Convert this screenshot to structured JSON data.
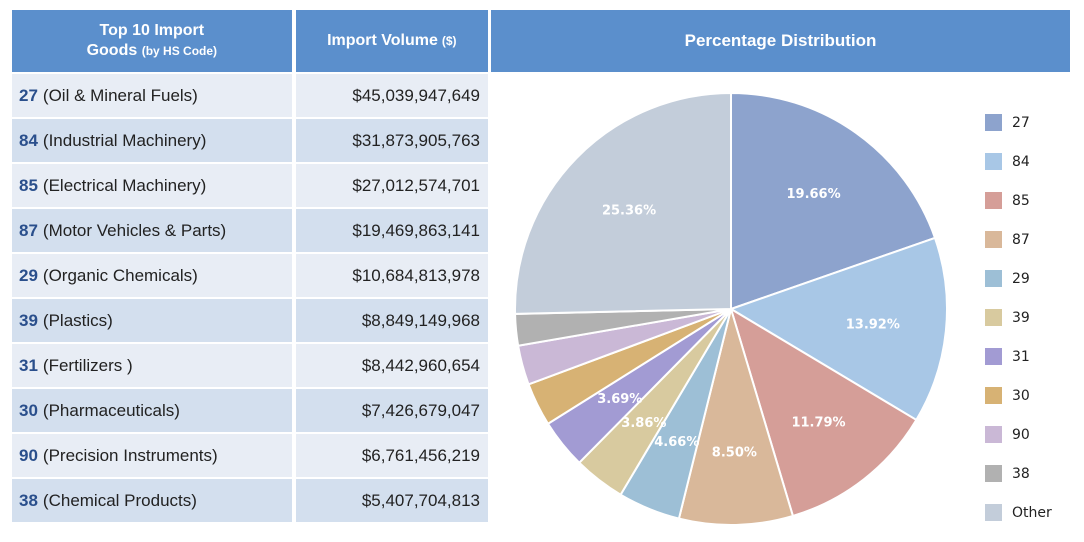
{
  "table": {
    "header_goods_line1": "Top 10 Import",
    "header_goods_line2": "Goods",
    "header_goods_suffix": "(by HS Code)",
    "header_volume": "Import Volume",
    "header_volume_suffix": "($)",
    "rows": [
      {
        "code": "27",
        "desc": "(Oil & Mineral Fuels)",
        "value": "$45,039,947,649"
      },
      {
        "code": "84",
        "desc": "(Industrial Machinery)",
        "value": "$31,873,905,763"
      },
      {
        "code": "85",
        "desc": "(Electrical Machinery)",
        "value": "$27,012,574,701"
      },
      {
        "code": "87",
        "desc": "(Motor Vehicles & Parts)",
        "value": "$19,469,863,141"
      },
      {
        "code": "29",
        "desc": "(Organic Chemicals)",
        "value": "$10,684,813,978"
      },
      {
        "code": "39",
        "desc": "(Plastics)",
        "value": "$8,849,149,968"
      },
      {
        "code": "31",
        "desc": "(Fertilizers )",
        "value": "$8,442,960,654"
      },
      {
        "code": "30",
        "desc": "(Pharmaceuticals)",
        "value": "$7,426,679,047"
      },
      {
        "code": "90",
        "desc": "(Precision Instruments)",
        "value": "$6,761,456,219"
      },
      {
        "code": "38",
        "desc": "(Chemical Products)",
        "value": "$5,407,704,813"
      }
    ]
  },
  "chart_data": {
    "type": "pie",
    "title": "Percentage Distribution",
    "legend_position": "right",
    "slices": [
      {
        "label": "27",
        "value": 19.66,
        "display": "19.66%",
        "color": "#8da3cd"
      },
      {
        "label": "84",
        "value": 13.92,
        "display": "13.92%",
        "color": "#a8c7e6"
      },
      {
        "label": "85",
        "value": 11.79,
        "display": "11.79%",
        "color": "#d59e98"
      },
      {
        "label": "87",
        "value": 8.5,
        "display": "8.50%",
        "color": "#d9b89a"
      },
      {
        "label": "29",
        "value": 4.66,
        "display": "4.66%",
        "color": "#9dbfd6"
      },
      {
        "label": "39",
        "value": 3.86,
        "display": "3.86%",
        "color": "#d8ca9f"
      },
      {
        "label": "31",
        "value": 3.69,
        "display": "3.69%",
        "color": "#a29bd3"
      },
      {
        "label": "30",
        "value": 3.24,
        "display": "",
        "color": "#d7b274"
      },
      {
        "label": "90",
        "value": 2.95,
        "display": "",
        "color": "#cab8d6"
      },
      {
        "label": "38",
        "value": 2.36,
        "display": "",
        "color": "#b1b1b1"
      },
      {
        "label": "Other",
        "value": 25.36,
        "display": "25.36%",
        "color": "#c3cdda"
      }
    ]
  }
}
